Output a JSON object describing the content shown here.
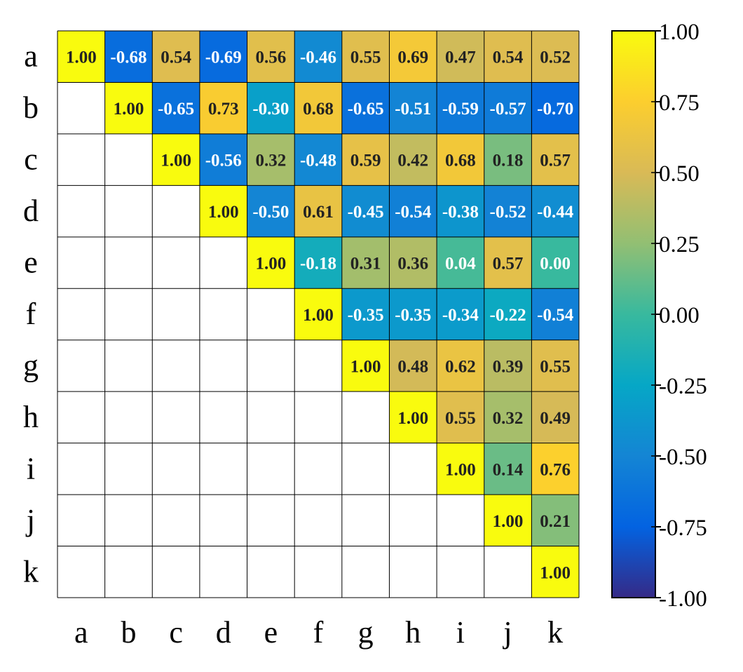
{
  "chart_data": {
    "type": "heatmap",
    "title": "",
    "xlabel": "",
    "ylabel": "",
    "categories": [
      "a",
      "b",
      "c",
      "d",
      "e",
      "f",
      "g",
      "h",
      "i",
      "j",
      "k"
    ],
    "layout": "upper-triangle",
    "values": [
      [
        1.0,
        -0.68,
        0.54,
        -0.69,
        0.56,
        -0.46,
        0.55,
        0.69,
        0.47,
        0.54,
        0.52
      ],
      [
        null,
        1.0,
        -0.65,
        0.73,
        -0.3,
        0.68,
        -0.65,
        -0.51,
        -0.59,
        -0.57,
        -0.7
      ],
      [
        null,
        null,
        1.0,
        -0.56,
        0.32,
        -0.48,
        0.59,
        0.42,
        0.68,
        0.18,
        0.57
      ],
      [
        null,
        null,
        null,
        1.0,
        -0.5,
        0.61,
        -0.45,
        -0.54,
        -0.38,
        -0.52,
        -0.44
      ],
      [
        null,
        null,
        null,
        null,
        1.0,
        -0.18,
        0.31,
        0.36,
        0.04,
        0.57,
        0.0
      ],
      [
        null,
        null,
        null,
        null,
        null,
        1.0,
        -0.35,
        -0.35,
        -0.34,
        -0.22,
        -0.54
      ],
      [
        null,
        null,
        null,
        null,
        null,
        null,
        1.0,
        0.48,
        0.62,
        0.39,
        0.55
      ],
      [
        null,
        null,
        null,
        null,
        null,
        null,
        null,
        1.0,
        0.55,
        0.32,
        0.49
      ],
      [
        null,
        null,
        null,
        null,
        null,
        null,
        null,
        null,
        1.0,
        0.14,
        0.76
      ],
      [
        null,
        null,
        null,
        null,
        null,
        null,
        null,
        null,
        null,
        1.0,
        0.21
      ],
      [
        null,
        null,
        null,
        null,
        null,
        null,
        null,
        null,
        null,
        null,
        1.0
      ]
    ],
    "colorbar": {
      "range": [
        -1.0,
        1.0
      ],
      "ticks": [
        1.0,
        0.75,
        0.5,
        0.25,
        0.0,
        -0.25,
        -0.5,
        -0.75,
        -1.0
      ],
      "tick_labels": [
        "1.00",
        "0.75",
        "0.50",
        "0.25",
        "0.00",
        "-0.25",
        "-0.50",
        "-0.75",
        "-1.00"
      ],
      "colormap": "parula",
      "stops": [
        {
          "v": -1.0,
          "color": "#352a87"
        },
        {
          "v": -0.75,
          "color": "#0363e1"
        },
        {
          "v": -0.5,
          "color": "#1485d4"
        },
        {
          "v": -0.25,
          "color": "#06a7c6"
        },
        {
          "v": 0.0,
          "color": "#38b99e"
        },
        {
          "v": 0.25,
          "color": "#92bf73"
        },
        {
          "v": 0.5,
          "color": "#d9ba56"
        },
        {
          "v": 0.75,
          "color": "#fcce2e"
        },
        {
          "v": 1.0,
          "color": "#f9fb0e"
        }
      ]
    },
    "text_colors": {
      "dark": "#222222",
      "light": "#ffffff"
    },
    "grid": true
  }
}
